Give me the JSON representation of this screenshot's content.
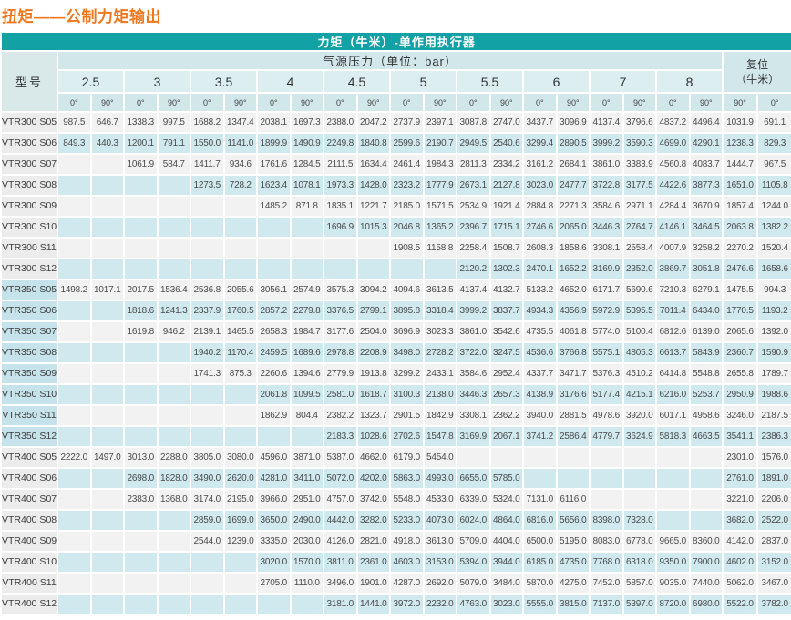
{
  "page_title": "扭矩——公制力矩输出",
  "colors": {
    "title_orange": "#f1771d",
    "header_teal": "#12a2a6",
    "header_light_teal": "#d2e7ea",
    "pressure_row_bg": "#dceef0",
    "stripe_gray": "#f2f2f2",
    "stripe_blue": "#cfe9ef",
    "model_col_gray": "#ececec",
    "model_col_blue": "#c6e3eb"
  },
  "table": {
    "top_header": "力矩（牛米）-单作用执行器",
    "model_header": "型号",
    "pressure_header": "气源压力（单位：bar）",
    "reset_header_line1": "复位",
    "reset_header_line2": "（牛米）",
    "pressures": [
      "2.5",
      "3",
      "3.5",
      "4",
      "4.5",
      "5",
      "5.5",
      "6",
      "7",
      "8"
    ],
    "angle_zero": "0°",
    "angle_ninety": "90°",
    "reset_angles": [
      "90°",
      "0°"
    ],
    "rows": [
      {
        "model": "VTR300 S05",
        "values": [
          "987.5",
          "646.7",
          "1338.3",
          "997.5",
          "1688.2",
          "1347.4",
          "2038.1",
          "1697.3",
          "2388.0",
          "2047.2",
          "2737.9",
          "2397.1",
          "3087.8",
          "2747.0",
          "3437.7",
          "3096.9",
          "4137.4",
          "3796.6",
          "4837.2",
          "4496.4",
          "1031.9",
          "691.1"
        ]
      },
      {
        "model": "VTR300 S06",
        "values": [
          "849.3",
          "440.3",
          "1200.1",
          "791.1",
          "1550.0",
          "1141.0",
          "1899.9",
          "1490.9",
          "2249.8",
          "1840.8",
          "2599.6",
          "2190.7",
          "2949.5",
          "2540.6",
          "3299.4",
          "2890.5",
          "3999.2",
          "3590.3",
          "4699.0",
          "4290.1",
          "1238.3",
          "829.3"
        ]
      },
      {
        "model": "VTR300 S07",
        "values": [
          "",
          "",
          "1061.9",
          "584.7",
          "1411.7",
          "934.6",
          "1761.6",
          "1284.5",
          "2111.5",
          "1634.4",
          "2461.4",
          "1984.3",
          "2811.3",
          "2334.2",
          "3161.2",
          "2684.1",
          "3861.0",
          "3383.9",
          "4560.8",
          "4083.7",
          "1444.7",
          "967.5"
        ]
      },
      {
        "model": "VTR300 S08",
        "values": [
          "",
          "",
          "",
          "",
          "1273.5",
          "728.2",
          "1623.4",
          "1078.1",
          "1973.3",
          "1428.0",
          "2323.2",
          "1777.9",
          "2673.1",
          "2127.8",
          "3023.0",
          "2477.7",
          "3722.8",
          "3177.5",
          "4422.6",
          "3877.3",
          "1651.0",
          "1105.8"
        ]
      },
      {
        "model": "VTR300 S09",
        "values": [
          "",
          "",
          "",
          "",
          "",
          "",
          "1485.2",
          "871.8",
          "1835.1",
          "1221.7",
          "2185.0",
          "1571.5",
          "2534.9",
          "1921.4",
          "2884.8",
          "2271.3",
          "3584.6",
          "2971.1",
          "4284.4",
          "3670.9",
          "1857.4",
          "1244.0"
        ]
      },
      {
        "model": "VTR300 S10",
        "values": [
          "",
          "",
          "",
          "",
          "",
          "",
          "",
          "",
          "1696.9",
          "1015.3",
          "2046.8",
          "1365.2",
          "2396.7",
          "1715.1",
          "2746.6",
          "2065.0",
          "3446.3",
          "2764.7",
          "4146.1",
          "3464.5",
          "2063.8",
          "1382.2"
        ]
      },
      {
        "model": "VTR300 S11",
        "values": [
          "",
          "",
          "",
          "",
          "",
          "",
          "",
          "",
          "",
          "",
          "1908.5",
          "1158.8",
          "2258.4",
          "1508.7",
          "2608.3",
          "1858.6",
          "3308.1",
          "2558.4",
          "4007.9",
          "3258.2",
          "2270.2",
          "1520.4"
        ]
      },
      {
        "model": "VTR300 S12",
        "values": [
          "",
          "",
          "",
          "",
          "",
          "",
          "",
          "",
          "",
          "",
          "",
          "",
          "2120.2",
          "1302.3",
          "2470.1",
          "1652.2",
          "3169.9",
          "2352.0",
          "3869.7",
          "3051.8",
          "2476.6",
          "1658.6"
        ]
      },
      {
        "model": "VTR350 S05",
        "values": [
          "1498.2",
          "1017.1",
          "2017.5",
          "1536.4",
          "2536.8",
          "2055.6",
          "3056.1",
          "2574.9",
          "3575.3",
          "3094.2",
          "4094.6",
          "3613.5",
          "4137.4",
          "4132.7",
          "5133.2",
          "4652.0",
          "6171.7",
          "5690.6",
          "7210.3",
          "6279.1",
          "1475.5",
          "994.3"
        ]
      },
      {
        "model": "VTR350 S06",
        "values": [
          "",
          "",
          "1818.6",
          "1241.3",
          "2337.9",
          "1760.5",
          "2857.2",
          "2279.8",
          "3376.5",
          "2799.1",
          "3895.8",
          "3318.4",
          "3999.2",
          "3837.7",
          "4934.3",
          "4356.9",
          "5972.9",
          "5395.5",
          "7011.4",
          "6434.0",
          "1770.5",
          "1193.2"
        ]
      },
      {
        "model": "VTR350 S07",
        "values": [
          "",
          "",
          "1619.8",
          "946.2",
          "2139.1",
          "1465.5",
          "2658.3",
          "1984.7",
          "3177.6",
          "2504.0",
          "3696.9",
          "3023.3",
          "3861.0",
          "3542.6",
          "4735.5",
          "4061.8",
          "5774.0",
          "5100.4",
          "6812.6",
          "6139.0",
          "2065.6",
          "1392.0"
        ]
      },
      {
        "model": "VTR350 S08",
        "values": [
          "",
          "",
          "",
          "",
          "1940.2",
          "1170.4",
          "2459.5",
          "1689.6",
          "2978.8",
          "2208.9",
          "3498.0",
          "2728.2",
          "3722.0",
          "3247.5",
          "4536.6",
          "3766.8",
          "5575.1",
          "4805.3",
          "6613.7",
          "5843.9",
          "2360.7",
          "1590.9"
        ]
      },
      {
        "model": "VTR350 S09",
        "values": [
          "",
          "",
          "",
          "",
          "1741.3",
          "875.3",
          "2260.6",
          "1394.6",
          "2779.9",
          "1913.8",
          "3299.2",
          "2433.1",
          "3584.6",
          "2952.4",
          "4337.7",
          "3471.7",
          "5376.3",
          "4510.2",
          "6414.8",
          "5548.8",
          "2655.8",
          "1789.7"
        ]
      },
      {
        "model": "VTR350 S10",
        "values": [
          "",
          "",
          "",
          "",
          "",
          "",
          "2061.8",
          "1099.5",
          "2581.0",
          "1618.7",
          "3100.3",
          "2138.0",
          "3446.3",
          "2657.3",
          "4138.9",
          "3176.6",
          "5177.4",
          "4215.1",
          "6216.0",
          "5253.7",
          "2950.9",
          "1988.6"
        ]
      },
      {
        "model": "VTR350 S11",
        "values": [
          "",
          "",
          "",
          "",
          "",
          "",
          "1862.9",
          "804.4",
          "2382.2",
          "1323.7",
          "2901.5",
          "1842.9",
          "3308.1",
          "2362.2",
          "3940.0",
          "2881.5",
          "4978.6",
          "3920.0",
          "6017.1",
          "4958.6",
          "3246.0",
          "2187.5"
        ]
      },
      {
        "model": "VTR350 S12",
        "values": [
          "",
          "",
          "",
          "",
          "",
          "",
          "",
          "",
          "2183.3",
          "1028.6",
          "2702.6",
          "1547.8",
          "3169.9",
          "2067.1",
          "3741.2",
          "2586.4",
          "4779.7",
          "3624.9",
          "5818.3",
          "4663.5",
          "3541.1",
          "2386.3"
        ]
      },
      {
        "model": "VTR400 S05",
        "values": [
          "2222.0",
          "1497.0",
          "3013.0",
          "2288.0",
          "3805.0",
          "3080.0",
          "4596.0",
          "3871.0",
          "5387.0",
          "4662.0",
          "6179.0",
          "5454.0",
          "",
          "",
          "",
          "",
          "",
          "",
          "",
          "",
          "2301.0",
          "1576.0"
        ]
      },
      {
        "model": "VTR400 S06",
        "values": [
          "",
          "",
          "2698.0",
          "1828.0",
          "3490.0",
          "2620.0",
          "4281.0",
          "3411.0",
          "5072.0",
          "4202.0",
          "5863.0",
          "4993.0",
          "6655.0",
          "5785.0",
          "",
          "",
          "",
          "",
          "",
          "",
          "2761.0",
          "1891.0"
        ]
      },
      {
        "model": "VTR400 S07",
        "values": [
          "",
          "",
          "2383.0",
          "1368.0",
          "3174.0",
          "2195.0",
          "3966.0",
          "2951.0",
          "4757.0",
          "3742.0",
          "5548.0",
          "4533.0",
          "6339.0",
          "5324.0",
          "7131.0",
          "6116.0",
          "",
          "",
          "",
          "",
          "3221.0",
          "2206.0"
        ]
      },
      {
        "model": "VTR400 S08",
        "values": [
          "",
          "",
          "",
          "",
          "2859.0",
          "1699.0",
          "3650.0",
          "2490.0",
          "4442.0",
          "3282.0",
          "5233.0",
          "4073.0",
          "6024.0",
          "4864.0",
          "6816.0",
          "5656.0",
          "8398.0",
          "7328.0",
          "",
          "",
          "3682.0",
          "2522.0"
        ]
      },
      {
        "model": "VTR400 S09",
        "values": [
          "",
          "",
          "",
          "",
          "2544.0",
          "1239.0",
          "3335.0",
          "2030.0",
          "4126.0",
          "2821.0",
          "4918.0",
          "3613.0",
          "5709.0",
          "4404.0",
          "6500.0",
          "5195.0",
          "8083.0",
          "6778.0",
          "9665.0",
          "8360.0",
          "4142.0",
          "2837.0"
        ]
      },
      {
        "model": "VTR400 S10",
        "values": [
          "",
          "",
          "",
          "",
          "",
          "",
          "3020.0",
          "1570.0",
          "3811.0",
          "2361.0",
          "4603.0",
          "3153.0",
          "5394.0",
          "3944.0",
          "6185.0",
          "4735.0",
          "7768.0",
          "6318.0",
          "9350.0",
          "7900.0",
          "4602.0",
          "3152.0"
        ]
      },
      {
        "model": "VTR400 S11",
        "values": [
          "",
          "",
          "",
          "",
          "",
          "",
          "2705.0",
          "1110.0",
          "3496.0",
          "1901.0",
          "4287.0",
          "2692.0",
          "5079.0",
          "3484.0",
          "5870.0",
          "4275.0",
          "7452.0",
          "5857.0",
          "9035.0",
          "7440.0",
          "5062.0",
          "3467.0"
        ]
      },
      {
        "model": "VTR400 S12",
        "values": [
          "",
          "",
          "",
          "",
          "",
          "",
          "",
          "",
          "3181.0",
          "1441.0",
          "3972.0",
          "2232.0",
          "4763.0",
          "3023.0",
          "5555.0",
          "3815.0",
          "7137.0",
          "5397.0",
          "8720.0",
          "6980.0",
          "5522.0",
          "3782.0"
        ]
      }
    ]
  }
}
